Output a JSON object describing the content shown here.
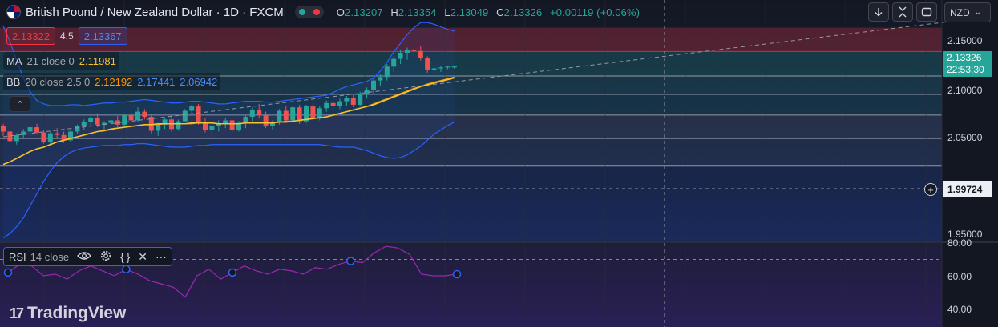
{
  "header": {
    "symbol_title": "British Pound / New Zealand Dollar · 1D · FXCM",
    "ohlc": [
      {
        "key": "O",
        "value": "2.13207"
      },
      {
        "key": "H",
        "value": "2.13354"
      },
      {
        "key": "L",
        "value": "2.13049"
      },
      {
        "key": "C",
        "value": "2.13326"
      },
      {
        "key": "",
        "value": "+0.00119 (+0.06%)"
      }
    ]
  },
  "trade": {
    "sell_price": "2.13322",
    "spread": "4.5",
    "buy_price": "2.13367"
  },
  "indicators": {
    "ma": {
      "name": "MA",
      "params": "21 close 0",
      "value": "2.11981",
      "color": "#f5c12e"
    },
    "bb": {
      "name": "BB",
      "params": "20 close 2.5 0",
      "basis": "2.12192",
      "upper": "2.17441",
      "lower": "2.06942",
      "basis_color": "#ff9800",
      "band_color": "#2962ff"
    }
  },
  "toolbar": {
    "currency": "NZD",
    "currency_chevron": "⌄",
    "collapse_glyph": "⌃"
  },
  "price_axis": {
    "ticks": [
      "2.15000",
      "2.10000",
      "2.05000",
      "1.95000"
    ],
    "last_price": "2.13326",
    "countdown": "22:53:30",
    "crosshair_price": "1.99724"
  },
  "rsi": {
    "name": "RSI",
    "params": "14 close",
    "ticks": [
      "80.00",
      "60.00",
      "40.00"
    ],
    "color": "#9c27b0",
    "values": [
      62,
      67,
      66,
      60,
      61,
      58,
      63,
      66,
      63,
      60,
      64,
      61,
      57,
      55,
      53,
      47,
      60,
      64,
      58,
      62,
      66,
      63,
      61,
      64,
      63,
      61,
      65,
      64,
      67,
      69,
      68,
      74,
      78,
      77,
      73,
      61,
      60,
      60,
      61
    ],
    "markers": [
      0,
      10,
      20,
      30,
      40
    ]
  },
  "brand": {
    "name": "TradingView",
    "logo": "17"
  },
  "colors": {
    "up": "#26a69a",
    "down": "#ef5350",
    "background": "#131722"
  },
  "chart_data": {
    "type": "candlestick",
    "interval": "1D",
    "ylim": [
      1.93,
      2.21
    ],
    "candles": [
      [
        2.064,
        2.067,
        2.053,
        2.058
      ],
      [
        2.058,
        2.061,
        2.045,
        2.047
      ],
      [
        2.047,
        2.056,
        2.043,
        2.054
      ],
      [
        2.054,
        2.061,
        2.051,
        2.058
      ],
      [
        2.058,
        2.066,
        2.053,
        2.063
      ],
      [
        2.063,
        2.067,
        2.055,
        2.057
      ],
      [
        2.057,
        2.06,
        2.044,
        2.046
      ],
      [
        2.046,
        2.058,
        2.043,
        2.056
      ],
      [
        2.056,
        2.062,
        2.05,
        2.054
      ],
      [
        2.054,
        2.058,
        2.045,
        2.048
      ],
      [
        2.048,
        2.06,
        2.046,
        2.058
      ],
      [
        2.058,
        2.066,
        2.055,
        2.064
      ],
      [
        2.064,
        2.072,
        2.06,
        2.069
      ],
      [
        2.069,
        2.076,
        2.064,
        2.074
      ],
      [
        2.074,
        2.079,
        2.063,
        2.066
      ],
      [
        2.066,
        2.07,
        2.059,
        2.068
      ],
      [
        2.068,
        2.075,
        2.064,
        2.071
      ],
      [
        2.071,
        2.076,
        2.063,
        2.066
      ],
      [
        2.066,
        2.079,
        2.065,
        2.077
      ],
      [
        2.077,
        2.082,
        2.068,
        2.071
      ],
      [
        2.071,
        2.086,
        2.069,
        2.081
      ],
      [
        2.081,
        2.084,
        2.072,
        2.075
      ],
      [
        2.075,
        2.078,
        2.056,
        2.059
      ],
      [
        2.059,
        2.068,
        2.053,
        2.066
      ],
      [
        2.066,
        2.074,
        2.061,
        2.072
      ],
      [
        2.072,
        2.076,
        2.058,
        2.061
      ],
      [
        2.061,
        2.072,
        2.059,
        2.07
      ],
      [
        2.07,
        2.084,
        2.069,
        2.082
      ],
      [
        2.082,
        2.089,
        2.077,
        2.087
      ],
      [
        2.087,
        2.09,
        2.066,
        2.069
      ],
      [
        2.069,
        2.074,
        2.057,
        2.06
      ],
      [
        2.06,
        2.066,
        2.052,
        2.064
      ],
      [
        2.064,
        2.071,
        2.058,
        2.067
      ],
      [
        2.067,
        2.074,
        2.062,
        2.071
      ],
      [
        2.071,
        2.073,
        2.057,
        2.06
      ],
      [
        2.06,
        2.07,
        2.058,
        2.068
      ],
      [
        2.068,
        2.077,
        2.062,
        2.075
      ],
      [
        2.075,
        2.086,
        2.07,
        2.083
      ],
      [
        2.083,
        2.09,
        2.073,
        2.077
      ],
      [
        2.077,
        2.081,
        2.062,
        2.064
      ],
      [
        2.064,
        2.071,
        2.06,
        2.069
      ],
      [
        2.069,
        2.084,
        2.066,
        2.082
      ],
      [
        2.082,
        2.088,
        2.068,
        2.071
      ],
      [
        2.071,
        2.088,
        2.069,
        2.086
      ],
      [
        2.086,
        2.089,
        2.067,
        2.07
      ],
      [
        2.07,
        2.089,
        2.068,
        2.087
      ],
      [
        2.087,
        2.091,
        2.071,
        2.074
      ],
      [
        2.074,
        2.088,
        2.071,
        2.085
      ],
      [
        2.085,
        2.094,
        2.081,
        2.091
      ],
      [
        2.091,
        2.094,
        2.084,
        2.088
      ],
      [
        2.088,
        2.096,
        2.084,
        2.093
      ],
      [
        2.093,
        2.099,
        2.088,
        2.097
      ],
      [
        2.097,
        2.1,
        2.086,
        2.089
      ],
      [
        2.089,
        2.104,
        2.087,
        2.102
      ],
      [
        2.102,
        2.109,
        2.096,
        2.106
      ],
      [
        2.106,
        2.12,
        2.101,
        2.117
      ],
      [
        2.117,
        2.124,
        2.111,
        2.121
      ],
      [
        2.121,
        2.136,
        2.117,
        2.133
      ],
      [
        2.133,
        2.145,
        2.127,
        2.142
      ],
      [
        2.142,
        2.152,
        2.136,
        2.149
      ],
      [
        2.149,
        2.155,
        2.141,
        2.152
      ],
      [
        2.152,
        2.154,
        2.144,
        2.151
      ],
      [
        2.151,
        2.157,
        2.14,
        2.143
      ],
      [
        2.143,
        2.145,
        2.126,
        2.129
      ],
      [
        2.129,
        2.134,
        2.126,
        2.131
      ],
      [
        2.131,
        2.134,
        2.127,
        2.132
      ],
      [
        2.132,
        2.134,
        2.13,
        2.133
      ],
      [
        2.1321,
        2.1335,
        2.1305,
        2.1333
      ]
    ],
    "ma_line": [
      2.02,
      2.023,
      2.027,
      2.031,
      2.035,
      2.038,
      2.04,
      2.043,
      2.046,
      2.048,
      2.05,
      2.052,
      2.054,
      2.056,
      2.058,
      2.059,
      2.061,
      2.062,
      2.063,
      2.064,
      2.065,
      2.066,
      2.066,
      2.067,
      2.067,
      2.067,
      2.067,
      2.067,
      2.068,
      2.068,
      2.068,
      2.068,
      2.067,
      2.067,
      2.067,
      2.067,
      2.068,
      2.068,
      2.068,
      2.068,
      2.068,
      2.069,
      2.069,
      2.07,
      2.071,
      2.072,
      2.073,
      2.074,
      2.075,
      2.077,
      2.079,
      2.081,
      2.083,
      2.085,
      2.087,
      2.089,
      2.092,
      2.095,
      2.098,
      2.101,
      2.104,
      2.107,
      2.11,
      2.112,
      2.114,
      2.116,
      2.118,
      2.12
    ],
    "bb_upper": [
      2.18,
      2.162,
      2.14,
      2.12,
      2.104,
      2.094,
      2.09,
      2.088,
      2.088,
      2.088,
      2.089,
      2.089,
      2.088,
      2.089,
      2.09,
      2.091,
      2.091,
      2.092,
      2.092,
      2.093,
      2.094,
      2.095,
      2.094,
      2.093,
      2.092,
      2.091,
      2.091,
      2.092,
      2.093,
      2.093,
      2.092,
      2.091,
      2.09,
      2.09,
      2.091,
      2.092,
      2.093,
      2.093,
      2.093,
      2.092,
      2.092,
      2.093,
      2.094,
      2.095,
      2.096,
      2.097,
      2.098,
      2.099,
      2.1,
      2.103,
      2.107,
      2.11,
      2.112,
      2.114,
      2.116,
      2.12,
      2.128,
      2.138,
      2.15,
      2.16,
      2.17,
      2.178,
      2.184,
      2.184,
      2.182,
      2.179,
      2.176,
      2.174
    ],
    "bb_lower": [
      1.935,
      1.94,
      1.948,
      1.958,
      1.972,
      1.986,
      2.0,
      2.012,
      2.022,
      2.029,
      2.034,
      2.037,
      2.039,
      2.04,
      2.041,
      2.042,
      2.042,
      2.042,
      2.043,
      2.043,
      2.044,
      2.044,
      2.043,
      2.042,
      2.041,
      2.04,
      2.04,
      2.04,
      2.041,
      2.042,
      2.042,
      2.043,
      2.043,
      2.043,
      2.043,
      2.043,
      2.043,
      2.043,
      2.043,
      2.043,
      2.043,
      2.043,
      2.043,
      2.043,
      2.043,
      2.043,
      2.043,
      2.043,
      2.042,
      2.041,
      2.04,
      2.04,
      2.04,
      2.038,
      2.036,
      2.033,
      2.03,
      2.028,
      2.027,
      2.028,
      2.031,
      2.036,
      2.041,
      2.048,
      2.055,
      2.06,
      2.065,
      2.069
    ],
    "bb_basis": [
      2.02,
      2.023,
      2.027,
      2.031,
      2.035,
      2.038,
      2.04,
      2.043,
      2.046,
      2.048,
      2.05,
      2.052,
      2.054,
      2.056,
      2.058,
      2.059,
      2.06,
      2.062,
      2.063,
      2.064,
      2.065,
      2.066,
      2.066,
      2.066,
      2.067,
      2.067,
      2.067,
      2.067,
      2.067,
      2.068,
      2.068,
      2.068,
      2.067,
      2.067,
      2.067,
      2.067,
      2.068,
      2.068,
      2.068,
      2.068,
      2.068,
      2.069,
      2.07,
      2.07,
      2.071,
      2.072,
      2.073,
      2.074,
      2.075,
      2.077,
      2.079,
      2.081,
      2.083,
      2.085,
      2.087,
      2.09,
      2.093,
      2.096,
      2.099,
      2.102,
      2.105,
      2.108,
      2.11,
      2.113,
      2.115,
      2.117,
      2.119,
      2.121
    ],
    "horizontal_lines": [
      2.1505,
      2.1222,
      2.101,
      2.077,
      2.05,
      2.018
    ],
    "crosshair_price": 1.99724,
    "trendline": [
      [
        0,
        2.052
      ],
      [
        96,
        2.188
      ]
    ]
  }
}
